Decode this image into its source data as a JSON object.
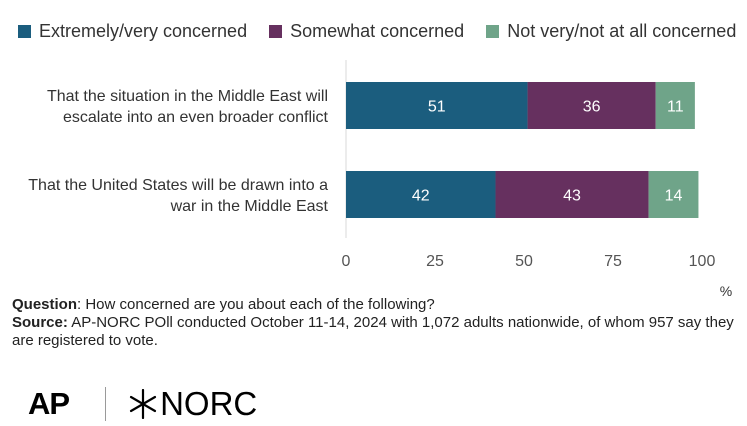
{
  "legend": [
    {
      "label": "Extremely/very concerned",
      "color": "#1b5d7e"
    },
    {
      "label": "Somewhat concerned",
      "color": "#66305f"
    },
    {
      "label": "Not very/not at all concerned",
      "color": "#6fa489"
    }
  ],
  "chart_data": {
    "type": "bar",
    "orientation": "horizontal",
    "stacked": true,
    "categories": [
      [
        "That the situation in the Middle East will",
        "escalate into an even broader conflict"
      ],
      [
        "That the United States will be drawn into a",
        "war in the Middle East"
      ]
    ],
    "series": [
      {
        "name": "Extremely/very concerned",
        "values": [
          51,
          42
        ],
        "color": "#1b5d7e"
      },
      {
        "name": "Somewhat concerned",
        "values": [
          36,
          43
        ],
        "color": "#66305f"
      },
      {
        "name": "Not very/not at all concerned",
        "values": [
          11,
          14
        ],
        "color": "#6fa489"
      }
    ],
    "xlim": [
      0,
      100
    ],
    "xticks": [
      0,
      25,
      50,
      75,
      100
    ],
    "xlabel": "%",
    "grid": false,
    "legend_position": "top"
  },
  "notes": {
    "question_label": "Question",
    "question_text": ": How concerned are you about each of the following?",
    "source_label": "Source:",
    "source_text": " AP-NORC POll conducted October 11-14, 2024 with 1,072 adults nationwide, of whom 957 say they are registered to vote."
  },
  "logos": {
    "ap": "AP",
    "norc": "NORC"
  }
}
